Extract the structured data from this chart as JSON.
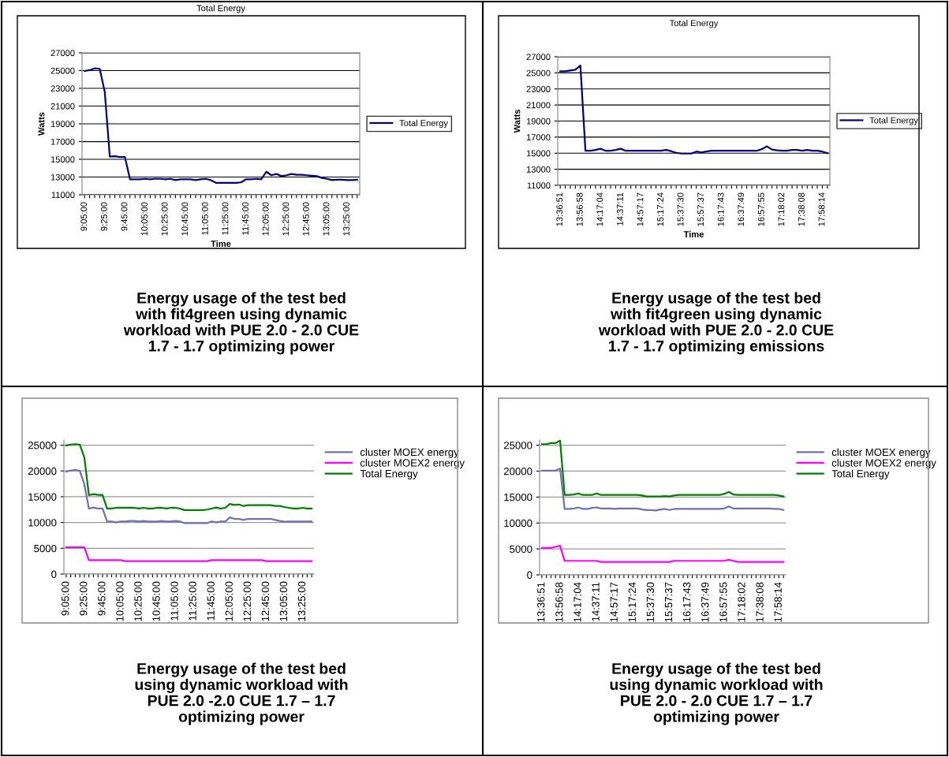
{
  "chart_data": [
    {
      "type": "line",
      "title": "Total Energy",
      "xlabel": "Time",
      "ylabel": "Watts",
      "categories": [
        "9:05:00",
        null,
        null,
        null,
        "9:25:00",
        null,
        null,
        null,
        "9:45:00",
        null,
        null,
        null,
        "10:05:00",
        null,
        null,
        null,
        "10:25:00",
        null,
        null,
        null,
        "10:45:00",
        null,
        null,
        null,
        "11:05:00",
        null,
        null,
        null,
        "11:25:00",
        null,
        null,
        null,
        "11:45:00",
        null,
        null,
        null,
        "12:05:00",
        null,
        null,
        null,
        "12:25:00",
        null,
        null,
        null,
        "12:45:00",
        null,
        null,
        null,
        "13:05:00",
        null,
        null,
        null,
        "13:25:00",
        null,
        null
      ],
      "series": [
        {
          "name": "Total Energy",
          "color": "#000080",
          "values": [
            24950,
            25050,
            25250,
            25200,
            22600,
            15300,
            15350,
            15250,
            15250,
            12750,
            12750,
            12750,
            12800,
            12750,
            12800,
            12800,
            12750,
            12800,
            12650,
            12750,
            12750,
            12750,
            12650,
            12750,
            12800,
            12650,
            12350,
            12350,
            12350,
            12350,
            12350,
            12400,
            12750,
            12750,
            12800,
            12750,
            13600,
            13200,
            13350,
            13100,
            13200,
            13350,
            13250,
            13250,
            13200,
            13150,
            13100,
            12900,
            12800,
            12650,
            12700,
            12700,
            12650,
            12650,
            12700
          ]
        }
      ],
      "ylim": [
        11000,
        27000
      ],
      "yticks": [
        11000,
        13000,
        15000,
        17000,
        19000,
        21000,
        23000,
        25000,
        27000
      ],
      "grid": "y",
      "legend": "right",
      "annotations": [
        "Energy usage of the test bed\nwith fit4green using dynamic\nworkload with PUE 2.0 - 2.0 CUE\n1.7 - 1.7 optimizing power"
      ]
    },
    {
      "type": "line",
      "title": "Total Energy",
      "xlabel": "Time",
      "ylabel": "Watts",
      "categories": [
        "13:36:51",
        null,
        null,
        null,
        "13:56:58",
        null,
        null,
        null,
        "14:17:04",
        null,
        null,
        null,
        "14:37:11",
        null,
        null,
        null,
        "14:57:17",
        null,
        null,
        null,
        "15:17:24",
        null,
        null,
        null,
        "15:37:30",
        null,
        null,
        null,
        "15:57:37",
        null,
        null,
        null,
        "16:17:43",
        null,
        null,
        null,
        "16:37:49",
        null,
        null,
        null,
        "16:57:55",
        null,
        null,
        null,
        "17:18:02",
        null,
        null,
        null,
        "17:38:08",
        null,
        null,
        null,
        "17:58:14",
        null
      ],
      "series": [
        {
          "name": "Total Energy",
          "color": "#000080",
          "values": [
            25200,
            25200,
            25300,
            25400,
            25900,
            15300,
            15300,
            15400,
            15550,
            15300,
            15300,
            15400,
            15550,
            15300,
            15300,
            15300,
            15300,
            15300,
            15300,
            15300,
            15300,
            15400,
            15250,
            15050,
            14950,
            14950,
            14950,
            15200,
            15100,
            15200,
            15300,
            15300,
            15300,
            15300,
            15300,
            15300,
            15300,
            15300,
            15300,
            15300,
            15500,
            15850,
            15450,
            15350,
            15300,
            15300,
            15400,
            15400,
            15300,
            15400,
            15300,
            15300,
            15200,
            15000
          ]
        }
      ],
      "ylim": [
        11000,
        27000
      ],
      "yticks": [
        11000,
        13000,
        15000,
        17000,
        19000,
        21000,
        23000,
        25000,
        27000
      ],
      "grid": "y",
      "legend": "right",
      "annotations": [
        "Energy usage of the test bed\nwith fit4green using dynamic\nworkload with PUE 2.0 - 2.0 CUE\n1.7 - 1.7 optimizing emissions"
      ]
    },
    {
      "type": "line",
      "categories": [
        "9:05:00",
        null,
        null,
        null,
        "9:25:00",
        null,
        null,
        null,
        "9:45:00",
        null,
        null,
        null,
        "10:05:00",
        null,
        null,
        null,
        "10:25:00",
        null,
        null,
        null,
        "10:45:00",
        null,
        null,
        null,
        "11:05:00",
        null,
        null,
        null,
        "11:25:00",
        null,
        null,
        null,
        "11:45:00",
        null,
        null,
        null,
        "12:05:00",
        null,
        null,
        null,
        "12:25:00",
        null,
        null,
        null,
        "12:45:00",
        null,
        null,
        null,
        "13:05:00",
        null,
        null,
        null,
        "13:25:00",
        null,
        null
      ],
      "series": [
        {
          "name": "cluster MOEX energy",
          "color": "#7070b0",
          "values": [
            19900,
            20050,
            20200,
            20000,
            17400,
            12700,
            12900,
            12700,
            12700,
            10200,
            10200,
            10050,
            10200,
            10200,
            10300,
            10300,
            10200,
            10300,
            10200,
            10200,
            10200,
            10300,
            10200,
            10200,
            10300,
            10200,
            9900,
            9900,
            9900,
            9900,
            9900,
            9900,
            10200,
            10050,
            10200,
            10200,
            11000,
            10700,
            10700,
            10500,
            10700,
            10700,
            10700,
            10700,
            10700,
            10700,
            10500,
            10300,
            10150,
            10200,
            10200,
            10200,
            10200,
            10200,
            10200
          ]
        },
        {
          "name": "cluster MOEX2 energy",
          "color": "#ff00ff",
          "values": [
            5200,
            5200,
            5200,
            5200,
            5200,
            2700,
            2700,
            2700,
            2700,
            2700,
            2700,
            2700,
            2700,
            2500,
            2500,
            2500,
            2500,
            2500,
            2500,
            2500,
            2500,
            2500,
            2500,
            2500,
            2500,
            2500,
            2500,
            2500,
            2500,
            2500,
            2500,
            2500,
            2700,
            2700,
            2700,
            2700,
            2700,
            2700,
            2700,
            2700,
            2700,
            2700,
            2700,
            2700,
            2500,
            2500,
            2500,
            2500,
            2500,
            2500,
            2500,
            2500,
            2500,
            2500,
            2500
          ]
        },
        {
          "name": "Total Energy",
          "color": "#008000",
          "values": [
            24950,
            25100,
            25200,
            25100,
            22600,
            15300,
            15500,
            15350,
            15350,
            12700,
            12700,
            12850,
            12850,
            12850,
            12850,
            12850,
            12700,
            12850,
            12700,
            12700,
            12850,
            12850,
            12700,
            12850,
            12850,
            12700,
            12400,
            12400,
            12400,
            12400,
            12400,
            12500,
            12700,
            12900,
            12700,
            12850,
            13600,
            13400,
            13500,
            13200,
            13350,
            13350,
            13350,
            13350,
            13350,
            13350,
            13200,
            13200,
            13000,
            12850,
            12700,
            12700,
            12850,
            12700,
            12700
          ]
        }
      ],
      "ylim": [
        0,
        26000
      ],
      "yticks": [
        0,
        5000,
        10000,
        15000,
        20000,
        25000
      ],
      "grid": "y",
      "legend": "top right",
      "annotations": [
        "Energy usage of the test bed\nusing dynamic workload with\nPUE 2.0 -2.0 CUE 1.7 – 1.7\noptimizing power"
      ]
    },
    {
      "type": "line",
      "categories": [
        "13:36:51",
        null,
        null,
        null,
        "13:56:58",
        null,
        null,
        null,
        "14:17:04",
        null,
        null,
        null,
        "14:37:11",
        null,
        null,
        null,
        "14:57:17",
        null,
        null,
        null,
        "15:17:24",
        null,
        null,
        null,
        "15:37:30",
        null,
        null,
        null,
        "15:57:37",
        null,
        null,
        null,
        "16:17:43",
        null,
        null,
        null,
        "16:37:49",
        null,
        null,
        null,
        "16:57:55",
        null,
        null,
        null,
        "17:18:02",
        null,
        null,
        null,
        "17:38:08",
        null,
        null,
        null,
        "17:58:14",
        null
      ],
      "series": [
        {
          "name": "cluster MOEX energy",
          "color": "#7070b0",
          "values": [
            20100,
            20100,
            20100,
            20100,
            20500,
            12700,
            12700,
            12800,
            13000,
            12700,
            12700,
            12900,
            13000,
            12800,
            12800,
            12800,
            12700,
            12800,
            12800,
            12800,
            12800,
            12800,
            12600,
            12500,
            12500,
            12400,
            12600,
            12700,
            12500,
            12700,
            12700,
            12700,
            12700,
            12700,
            12700,
            12700,
            12700,
            12700,
            12700,
            12700,
            12800,
            13200,
            12800,
            12800,
            12800,
            12800,
            12800,
            12800,
            12800,
            12800,
            12800,
            12700,
            12700,
            12500
          ]
        },
        {
          "name": "cluster MOEX2 energy",
          "color": "#ff00ff",
          "values": [
            5200,
            5200,
            5200,
            5400,
            5600,
            2700,
            2700,
            2700,
            2700,
            2700,
            2700,
            2700,
            2700,
            2500,
            2500,
            2500,
            2500,
            2500,
            2500,
            2500,
            2500,
            2500,
            2500,
            2500,
            2500,
            2500,
            2500,
            2500,
            2500,
            2700,
            2700,
            2700,
            2700,
            2700,
            2700,
            2700,
            2700,
            2700,
            2700,
            2700,
            2700,
            2900,
            2700,
            2500,
            2500,
            2500,
            2500,
            2500,
            2500,
            2500,
            2500,
            2500,
            2500,
            2500
          ]
        },
        {
          "name": "Total Energy",
          "color": "#008000",
          "values": [
            25200,
            25200,
            25400,
            25400,
            25900,
            15400,
            15400,
            15500,
            15700,
            15400,
            15400,
            15400,
            15700,
            15400,
            15400,
            15400,
            15400,
            15400,
            15400,
            15400,
            15400,
            15400,
            15300,
            15100,
            15100,
            15100,
            15100,
            15200,
            15100,
            15300,
            15400,
            15400,
            15400,
            15400,
            15400,
            15400,
            15400,
            15400,
            15400,
            15400,
            15600,
            16000,
            15500,
            15400,
            15400,
            15400,
            15400,
            15400,
            15400,
            15400,
            15400,
            15400,
            15300,
            15100
          ]
        }
      ],
      "ylim": [
        0,
        26000
      ],
      "yticks": [
        0,
        5000,
        10000,
        15000,
        20000,
        25000
      ],
      "grid": "y",
      "legend": "top right",
      "annotations": [
        "Energy usage of the test bed\nusing dynamic workload with\nPUE 2.0 - 2.0 CUE 1.7 – 1.7\noptimizing power"
      ]
    }
  ]
}
